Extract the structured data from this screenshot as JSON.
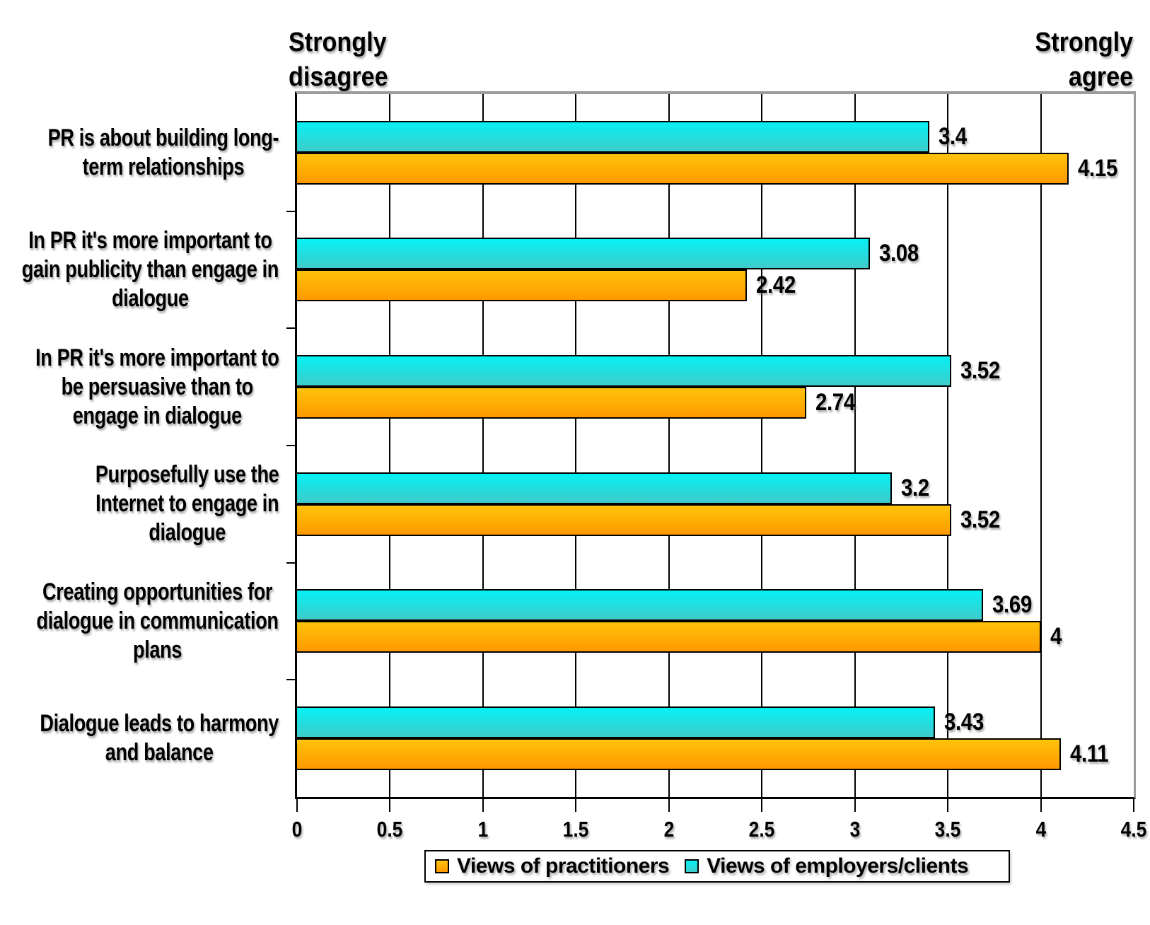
{
  "header": {
    "left_annotation": "Strongly\ndisagree",
    "right_annotation": "Strongly\nagree"
  },
  "chart_data": {
    "type": "bar",
    "orientation": "horizontal",
    "title": "",
    "categories": [
      "PR is about building long-term relationships",
      "In PR it's more important to gain publicity than engage in dialogue",
      "In PR it's more important to be persuasive than to engage in dialogue",
      "Purposefully use the Internet to engage in dialogue",
      "Creating opportunities for dialogue in communication plans",
      "Dialogue leads to harmony and balance"
    ],
    "category_lines": [
      [
        "PR is about building long-",
        "term relationships"
      ],
      [
        "In PR it's more important to",
        "gain publicity than engage in",
        "dialogue"
      ],
      [
        "In PR it's more important to",
        "be persuasive than to",
        "engage in dialogue"
      ],
      [
        "Purposefully use the",
        "Internet to engage in",
        "dialogue"
      ],
      [
        "Creating opportunities for",
        "dialogue in communication",
        "plans"
      ],
      [
        "Dialogue leads to harmony",
        "and balance"
      ]
    ],
    "series": [
      {
        "name": "Views of practitioners",
        "color_top": "#FFC30A",
        "color_bottom": "#FF9900",
        "values": [
          4.15,
          2.42,
          2.74,
          3.52,
          4,
          4.11
        ]
      },
      {
        "name": "Views of employers/clients",
        "color_top": "#06F1F5",
        "color_bottom": "#3FCBCA",
        "values": [
          3.4,
          3.08,
          3.52,
          3.2,
          3.69,
          3.43
        ]
      }
    ],
    "xlim": [
      0,
      4.5
    ],
    "x_ticks": [
      "0",
      "0.5",
      "1",
      "1.5",
      "2",
      "2.5",
      "3",
      "3.5",
      "4",
      "4.5"
    ],
    "grid": true,
    "grid_interval": 0.5,
    "legend_position": "bottom",
    "axis_endpoint_labels": {
      "min": "Strongly disagree",
      "max": "Strongly agree"
    }
  }
}
